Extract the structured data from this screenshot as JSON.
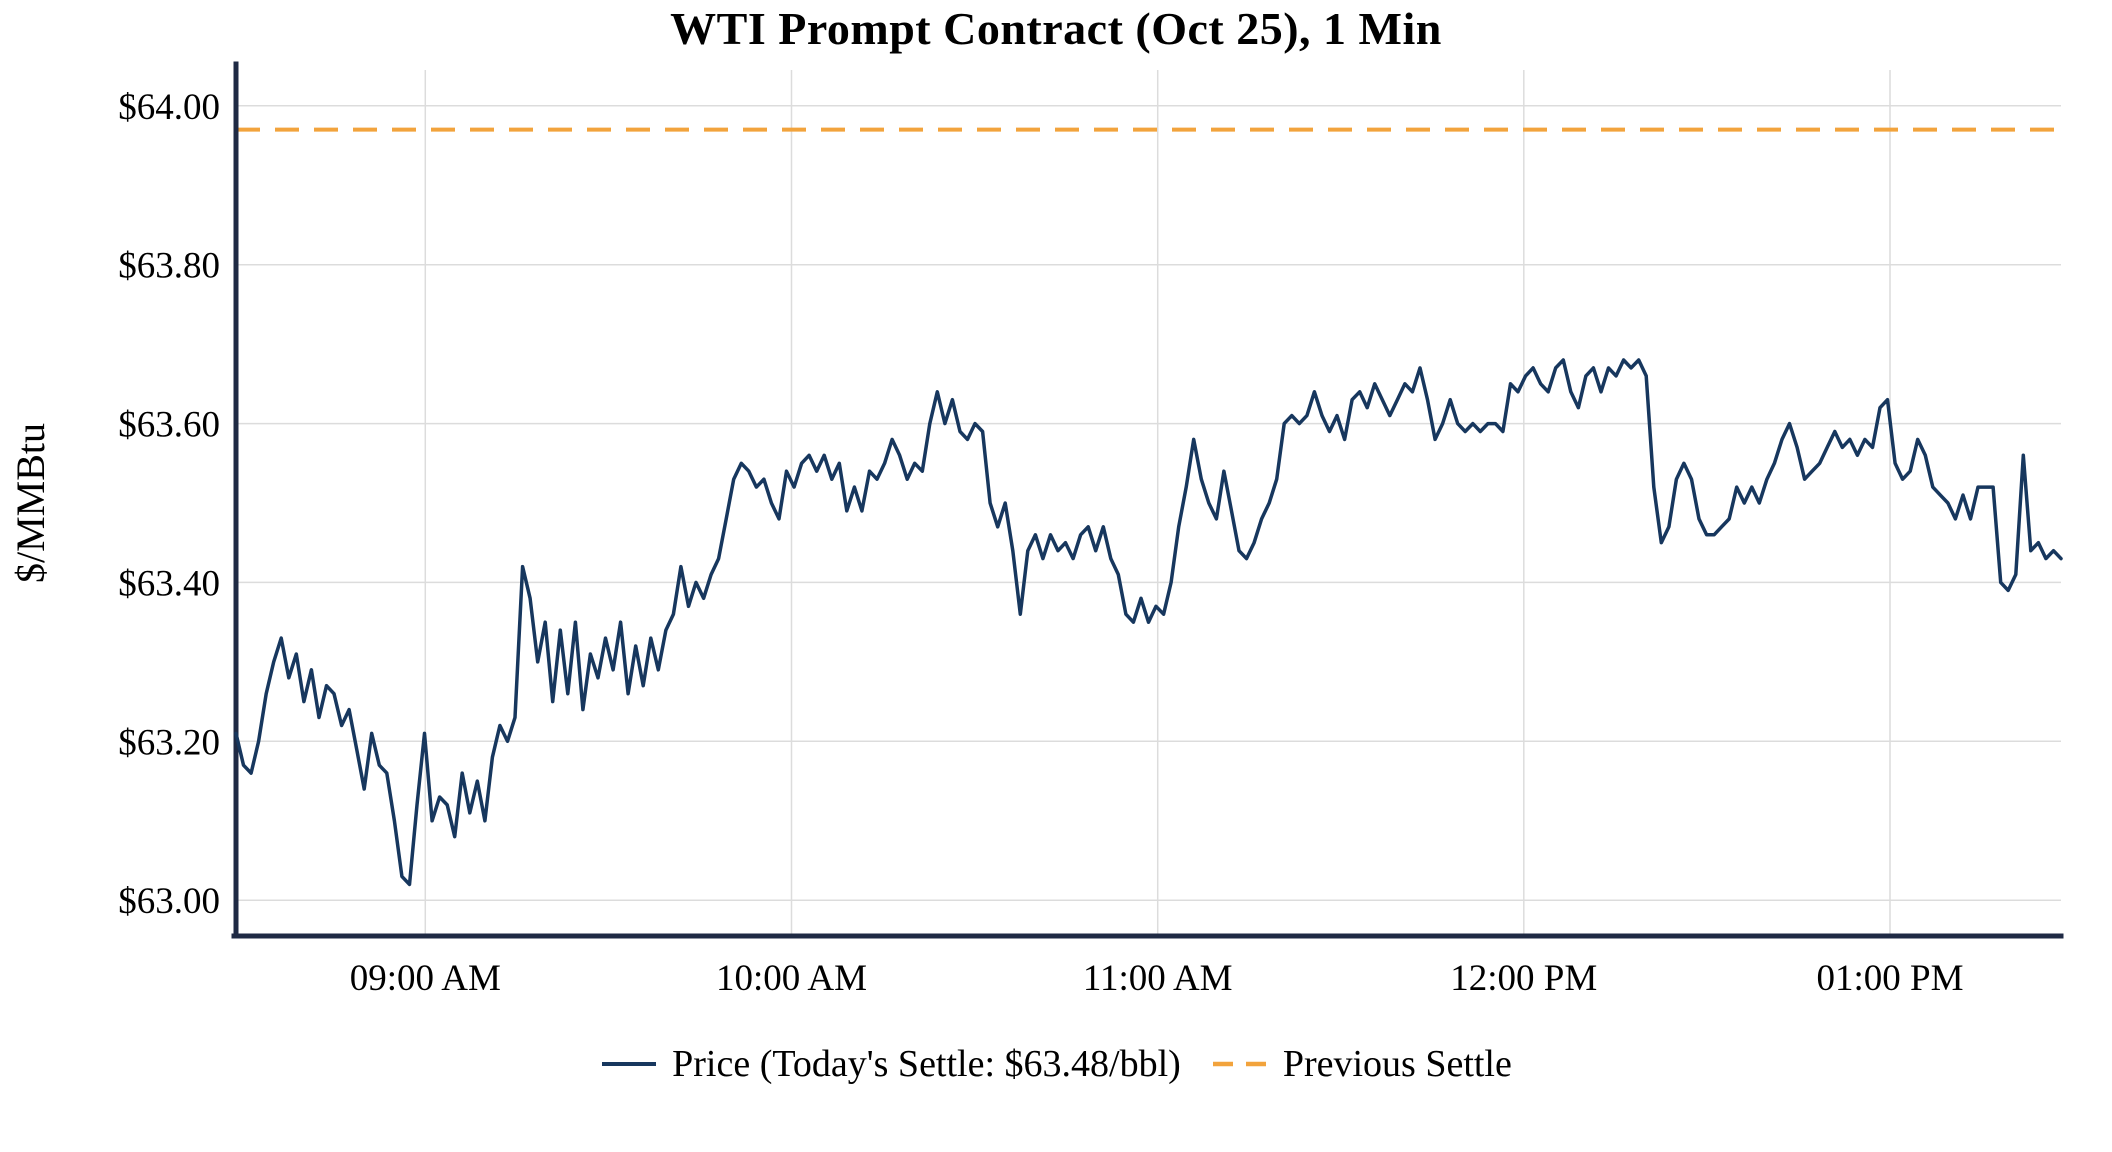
{
  "colors": {
    "price_line": "#17375E",
    "previous_settle": "#F2A33C",
    "grid": "#DCDCDC",
    "axis": "#1F2A44",
    "text": "#000000"
  },
  "legend": {
    "items": [
      {
        "label": "Price (Today's Settle: $63.48/bbl)",
        "style": "solid"
      },
      {
        "label": "Previous Settle",
        "style": "dashed"
      }
    ]
  },
  "chart_data": {
    "type": "line",
    "title": "WTI Prompt Contract (Oct 25), 1 Min",
    "xlabel": "",
    "ylabel": "$/MMBtu",
    "grid": true,
    "legend_position": "bottom-center",
    "previous_settle": 63.97,
    "todays_settle": 63.48,
    "y_axis": {
      "min": 62.955,
      "max": 64.045,
      "ticks": [
        {
          "value": 64.0,
          "label": "$64.00"
        },
        {
          "value": 63.8,
          "label": "$63.80"
        },
        {
          "value": 63.6,
          "label": "$63.60"
        },
        {
          "value": 63.4,
          "label": "$63.40"
        },
        {
          "value": 63.2,
          "label": "$63.20"
        },
        {
          "value": 63.0,
          "label": "$63.00"
        }
      ]
    },
    "x_axis": {
      "min_hour": 8.483,
      "max_hour": 13.467,
      "ticks": [
        {
          "hour": 9,
          "label": "09:00 AM"
        },
        {
          "hour": 10,
          "label": "10:00 AM"
        },
        {
          "hour": 11,
          "label": "11:00 AM"
        },
        {
          "hour": 12,
          "label": "12:00 PM"
        },
        {
          "hour": 13,
          "label": "01:00 PM"
        }
      ]
    },
    "series": [
      {
        "name": "Price",
        "values": [
          63.21,
          63.17,
          63.16,
          63.2,
          63.26,
          63.3,
          63.33,
          63.28,
          63.31,
          63.25,
          63.29,
          63.23,
          63.27,
          63.26,
          63.22,
          63.24,
          63.19,
          63.14,
          63.21,
          63.17,
          63.16,
          63.1,
          63.03,
          63.02,
          63.12,
          63.21,
          63.1,
          63.13,
          63.12,
          63.08,
          63.16,
          63.11,
          63.15,
          63.1,
          63.18,
          63.22,
          63.2,
          63.23,
          63.42,
          63.38,
          63.3,
          63.35,
          63.25,
          63.34,
          63.26,
          63.35,
          63.24,
          63.31,
          63.28,
          63.33,
          63.29,
          63.35,
          63.26,
          63.32,
          63.27,
          63.33,
          63.29,
          63.34,
          63.36,
          63.42,
          63.37,
          63.4,
          63.38,
          63.41,
          63.43,
          63.48,
          63.53,
          63.55,
          63.54,
          63.52,
          63.53,
          63.5,
          63.48,
          63.54,
          63.52,
          63.55,
          63.56,
          63.54,
          63.56,
          63.53,
          63.55,
          63.49,
          63.52,
          63.49,
          63.54,
          63.53,
          63.55,
          63.58,
          63.56,
          63.53,
          63.55,
          63.54,
          63.6,
          63.64,
          63.6,
          63.63,
          63.59,
          63.58,
          63.6,
          63.59,
          63.5,
          63.47,
          63.5,
          63.44,
          63.36,
          63.44,
          63.46,
          63.43,
          63.46,
          63.44,
          63.45,
          63.43,
          63.46,
          63.47,
          63.44,
          63.47,
          63.43,
          63.41,
          63.36,
          63.35,
          63.38,
          63.35,
          63.37,
          63.36,
          63.4,
          63.47,
          63.52,
          63.58,
          63.53,
          63.5,
          63.48,
          63.54,
          63.49,
          63.44,
          63.43,
          63.45,
          63.48,
          63.5,
          63.53,
          63.6,
          63.61,
          63.6,
          63.61,
          63.64,
          63.61,
          63.59,
          63.61,
          63.58,
          63.63,
          63.64,
          63.62,
          63.65,
          63.63,
          63.61,
          63.63,
          63.65,
          63.64,
          63.67,
          63.63,
          63.58,
          63.6,
          63.63,
          63.6,
          63.59,
          63.6,
          63.59,
          63.6,
          63.6,
          63.59,
          63.65,
          63.64,
          63.66,
          63.67,
          63.65,
          63.64,
          63.67,
          63.68,
          63.64,
          63.62,
          63.66,
          63.67,
          63.64,
          63.67,
          63.66,
          63.68,
          63.67,
          63.68,
          63.66,
          63.52,
          63.45,
          63.47,
          63.53,
          63.55,
          63.53,
          63.48,
          63.46,
          63.46,
          63.47,
          63.48,
          63.52,
          63.5,
          63.52,
          63.5,
          63.53,
          63.55,
          63.58,
          63.6,
          63.57,
          63.53,
          63.54,
          63.55,
          63.57,
          63.59,
          63.57,
          63.58,
          63.56,
          63.58,
          63.57,
          63.62,
          63.63,
          63.55,
          63.53,
          63.54,
          63.58,
          63.56,
          63.52,
          63.51,
          63.5,
          63.48,
          63.51,
          63.48,
          63.52,
          63.52,
          63.52,
          63.4,
          63.39,
          63.41,
          63.56,
          63.44,
          63.45,
          63.43,
          63.44,
          63.43
        ]
      }
    ]
  }
}
